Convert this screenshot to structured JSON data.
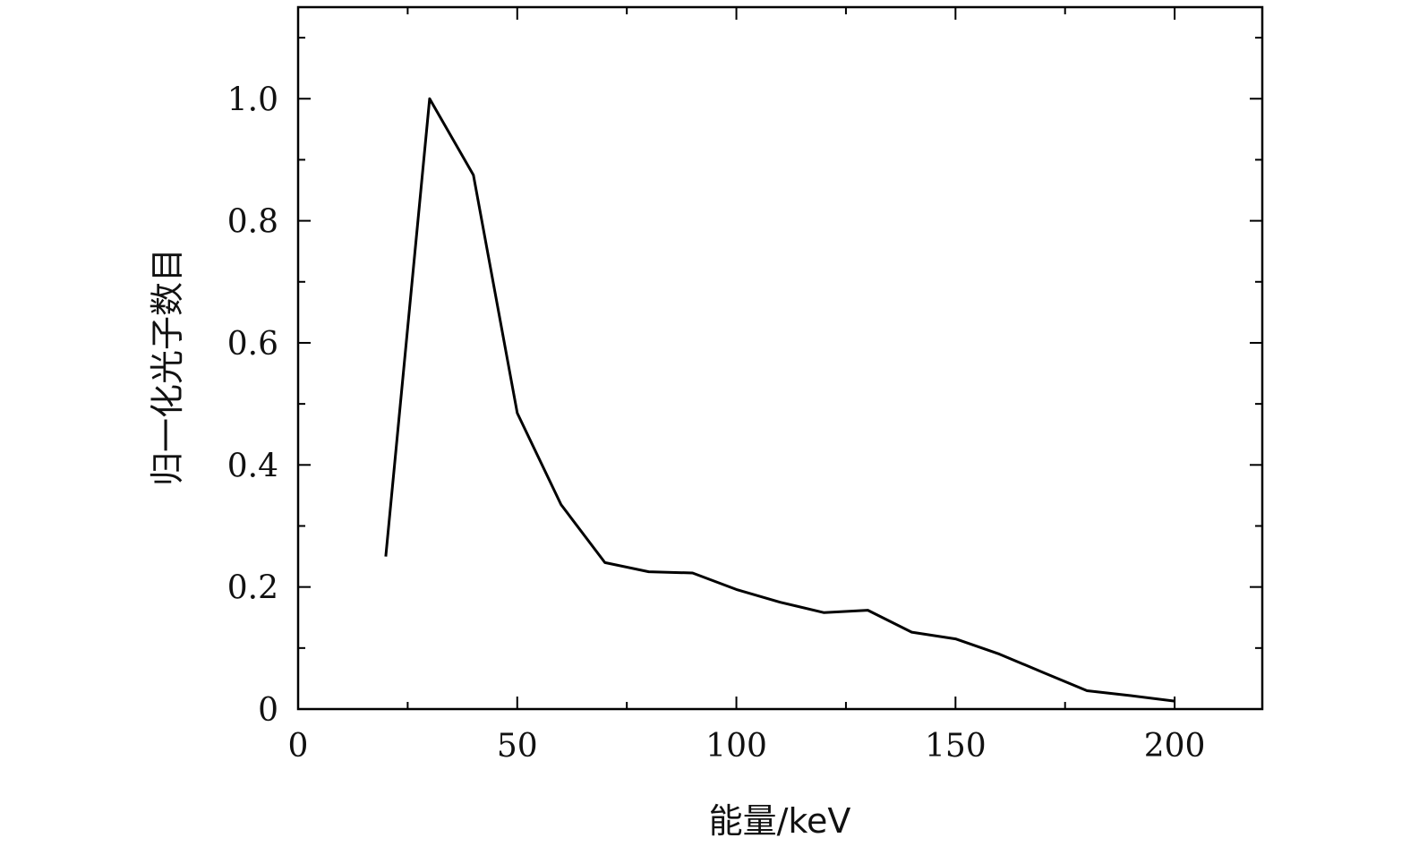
{
  "chart_data": {
    "type": "line",
    "title": "",
    "xlabel": "能量/keV",
    "ylabel": "归一化光子数目",
    "xlim": [
      0,
      220
    ],
    "ylim": [
      0,
      1.15
    ],
    "x_ticks": [
      0,
      50,
      100,
      150,
      200
    ],
    "x_tick_labels": [
      "0",
      "50",
      "100",
      "150",
      "200"
    ],
    "y_ticks": [
      0,
      0.2,
      0.4,
      0.6,
      0.8,
      1.0
    ],
    "y_tick_labels": [
      "0",
      "0.2",
      "0.4",
      "0.6",
      "0.8",
      "1.0"
    ],
    "grid": false,
    "series": [
      {
        "x": [
          20,
          30,
          40,
          50,
          60,
          70,
          80,
          90,
          100,
          110,
          120,
          130,
          140,
          150,
          160,
          170,
          180,
          190,
          200
        ],
        "y": [
          0.25,
          1.0,
          0.875,
          0.485,
          0.335,
          0.24,
          0.225,
          0.223,
          0.196,
          0.175,
          0.158,
          0.162,
          0.126,
          0.115,
          0.09,
          0.06,
          0.03,
          0.022,
          0.013
        ],
        "color": "#000000"
      }
    ]
  }
}
